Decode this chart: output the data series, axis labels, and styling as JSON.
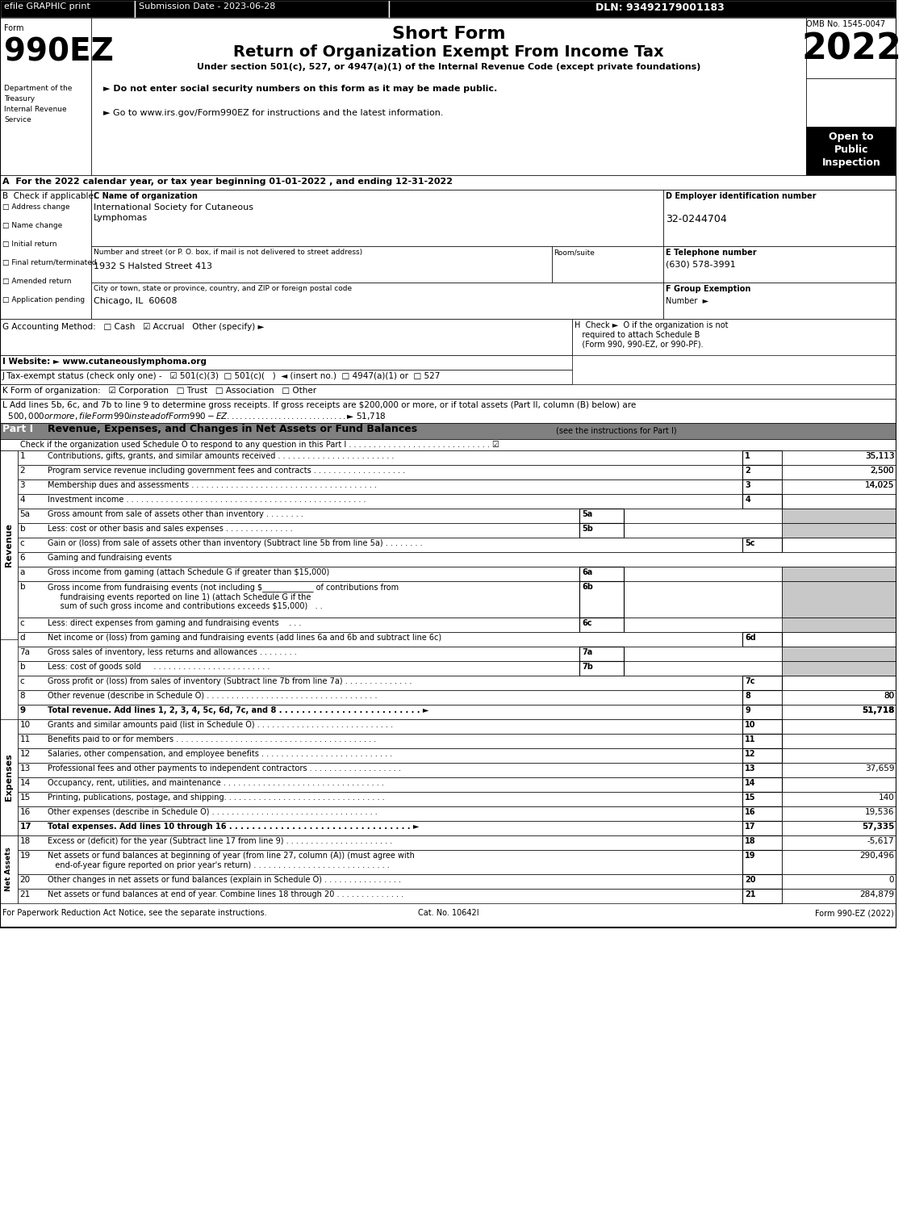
{
  "title_short": "Short Form",
  "title_main": "Return of Organization Exempt From Income Tax",
  "subtitle": "Under section 501(c), 527, or 4947(a)(1) of the Internal Revenue Code (except private foundations)",
  "year": "2022",
  "form_number": "990EZ",
  "omb": "OMB No. 1545-0047",
  "efile_text": "efile GRAPHIC print",
  "submission_date": "Submission Date - 2023-06-28",
  "dln": "DLN: 93492179001183",
  "dept1": "Department of the",
  "dept2": "Treasury",
  "dept3": "Internal Revenue",
  "dept4": "Service",
  "bullet1": "► Do not enter social security numbers on this form as it may be made public.",
  "bullet2": "► Go to www.irs.gov/Form990EZ for instructions and the latest information.",
  "open_to": "Open to",
  "public": "Public",
  "inspection": "Inspection",
  "line_A": "A  For the 2022 calendar year, or tax year beginning 01-01-2022 , and ending 12-31-2022",
  "line_B_label": "B  Check if applicable:",
  "check_items": [
    "Address change",
    "Name change",
    "Initial return",
    "Final return/terminated",
    "Amended return",
    "Application pending"
  ],
  "line_C_label": "C Name of organization",
  "org_name": "International Society for Cutaneous\nLymphomas",
  "address_label": "Number and street (or P. O. box, if mail is not delivered to street address)",
  "room_label": "Room/suite",
  "address_value": "1932 S Halsted Street 413",
  "city_label": "City or town, state or province, country, and ZIP or foreign postal code",
  "city_value": "Chicago, IL  60608",
  "line_D_label": "D Employer identification number",
  "ein": "32-0244704",
  "line_E_label": "E Telephone number",
  "phone": "(630) 578-3991",
  "line_F_label": "F Group Exemption",
  "line_F2": "Number  ►",
  "line_G": "G Accounting Method:   □ Cash   ☑ Accrual   Other (specify) ►",
  "line_H": "H  Check ►  O if the organization is not\n   required to attach Schedule B\n   (Form 990, 990-EZ, or 990-PF).",
  "line_I": "I Website: ► www.cutaneouslymphoma.org",
  "line_J": "J Tax-exempt status (check only one) -   ☑ 501(c)(3)  □ 501(c)(   )  ◄ (insert no.)  □ 4947(a)(1) or  □ 527",
  "line_K": "K Form of organization:   ☑ Corporation   □ Trust   □ Association   □ Other",
  "line_L": "L Add lines 5b, 6c, and 7b to line 9 to determine gross receipts. If gross receipts are $200,000 or more, or if total assets (Part II, column (B) below) are\n  $500,000 or more, file Form 990 instead of Form 990-EZ . . . . . . . . . . . . . . . . . . . . . . . . . . . .  ► $ 51,718",
  "part1_title": "Revenue, Expenses, and Changes in Net Assets or Fund Balances",
  "part1_subtitle": "(see the instructions for Part I)",
  "part1_check": "Check if the organization used Schedule O to respond to any question in this Part I . . . . . . . . . . . . . . . . . . . . . . . . . . . . . ☑",
  "revenue_rows": [
    {
      "num": "1",
      "label": "Contributions, gifts, grants, and similar amounts received . . . . . . . . . . . . . . . . . . . . . . . .",
      "line": "1",
      "value": "35,113"
    },
    {
      "num": "2",
      "label": "Program service revenue including government fees and contracts . . . . . . . . . . . . . . . . . . .",
      "line": "2",
      "value": "2,500"
    },
    {
      "num": "3",
      "label": "Membership dues and assessments . . . . . . . . . . . . . . . . . . . . . . . . . . . . . . . . . . . . . .",
      "line": "3",
      "value": "14,025"
    },
    {
      "num": "4",
      "label": "Investment income . . . . . . . . . . . . . . . . . . . . . . . . . . . . . . . . . . . . . . . . . . . . . . . . .",
      "line": "4",
      "value": ""
    },
    {
      "num": "5a",
      "label": "Gross amount from sale of assets other than inventory . . . . . . . .",
      "line": "5a",
      "value": "",
      "sub": true
    },
    {
      "num": "b",
      "label": "Less: cost or other basis and sales expenses . . . . . . . . . . . . . .",
      "line": "5b",
      "value": "",
      "sub": true
    },
    {
      "num": "c",
      "label": "Gain or (loss) from sale of assets other than inventory (Subtract line 5b from line 5a) . . . . . . . .",
      "line": "5c",
      "value": ""
    },
    {
      "num": "6",
      "label": "Gaming and fundraising events",
      "line": "",
      "value": ""
    },
    {
      "num": "a",
      "label": "Gross income from gaming (attach Schedule G if greater than $15,000)",
      "line": "6a",
      "value": "",
      "sub": true
    },
    {
      "num": "b",
      "label": "Gross income from fundraising events (not including $_____________ of contributions from\n     fundraising events reported on line 1) (attach Schedule G if the\n     sum of such gross income and contributions exceeds $15,000)   . .",
      "line": "6b",
      "value": "",
      "sub": true
    },
    {
      "num": "c",
      "label": "Less: direct expenses from gaming and fundraising events    . . .",
      "line": "6c",
      "value": "",
      "sub": true
    },
    {
      "num": "d",
      "label": "Net income or (loss) from gaming and fundraising events (add lines 6a and 6b and subtract line 6c)",
      "line": "6d",
      "value": ""
    },
    {
      "num": "7a",
      "label": "Gross sales of inventory, less returns and allowances . . . . . . . .",
      "line": "7a",
      "value": "",
      "sub": true
    },
    {
      "num": "b",
      "label": "Less: cost of goods sold     . . . . . . . . . . . . . . . . . . . . . . . .",
      "line": "7b",
      "value": "",
      "sub": true
    },
    {
      "num": "c",
      "label": "Gross profit or (loss) from sales of inventory (Subtract line 7b from line 7a) . . . . . . . . . . . . . .",
      "line": "7c",
      "value": ""
    },
    {
      "num": "8",
      "label": "Other revenue (describe in Schedule O) . . . . . . . . . . . . . . . . . . . . . . . . . . . . . . . . . . .",
      "line": "8",
      "value": "80"
    },
    {
      "num": "9",
      "label": "Total revenue. Add lines 1, 2, 3, 4, 5c, 6d, 7c, and 8 . . . . . . . . . . . . . . . . . . . . . . . . . ►",
      "line": "9",
      "value": "51,718",
      "bold": true
    }
  ],
  "expenses_rows": [
    {
      "num": "10",
      "label": "Grants and similar amounts paid (list in Schedule O) . . . . . . . . . . . . . . . . . . . . . . . . . . . .",
      "line": "10",
      "value": ""
    },
    {
      "num": "11",
      "label": "Benefits paid to or for members . . . . . . . . . . . . . . . . . . . . . . . . . . . . . . . . . . . . . . . . .",
      "line": "11",
      "value": ""
    },
    {
      "num": "12",
      "label": "Salaries, other compensation, and employee benefits . . . . . . . . . . . . . . . . . . . . . . . . . . .",
      "line": "12",
      "value": ""
    },
    {
      "num": "13",
      "label": "Professional fees and other payments to independent contractors . . . . . . . . . . . . . . . . . . .",
      "line": "13",
      "value": "37,659"
    },
    {
      "num": "14",
      "label": "Occupancy, rent, utilities, and maintenance . . . . . . . . . . . . . . . . . . . . . . . . . . . . . . . . .",
      "line": "14",
      "value": ""
    },
    {
      "num": "15",
      "label": "Printing, publications, postage, and shipping. . . . . . . . . . . . . . . . . . . . . . . . . . . . . . . . .",
      "line": "15",
      "value": "140"
    },
    {
      "num": "16",
      "label": "Other expenses (describe in Schedule O) . . . . . . . . . . . . . . . . . . . . . . . . . . . . . . . . . .",
      "line": "16",
      "value": "19,536"
    },
    {
      "num": "17",
      "label": "Total expenses. Add lines 10 through 16 . . . . . . . . . . . . . . . . . . . . . . . . . . . . . . . . ►",
      "line": "17",
      "value": "57,335",
      "bold": true
    }
  ],
  "netassets_rows": [
    {
      "num": "18",
      "label": "Excess or (deficit) for the year (Subtract line 17 from line 9) . . . . . . . . . . . . . . . . . . . . . .",
      "line": "18",
      "value": "-5,617"
    },
    {
      "num": "19",
      "label": "Net assets or fund balances at beginning of year (from line 27, column (A)) (must agree with\n   end-of-year figure reported on prior year's return) . . . . . . . . . . . . . . . . . . . . . . . . . . . .",
      "line": "19",
      "value": "290,496"
    },
    {
      "num": "20",
      "label": "Other changes in net assets or fund balances (explain in Schedule O) . . . . . . . . . . . . . . . .",
      "line": "20",
      "value": "0"
    },
    {
      "num": "21",
      "label": "Net assets or fund balances at end of year. Combine lines 18 through 20 . . . . . . . . . . . . . .",
      "line": "21",
      "value": "284,879"
    }
  ],
  "footer_left": "For Paperwork Reduction Act Notice, see the separate instructions.",
  "footer_cat": "Cat. No. 10642I",
  "footer_right": "Form 990-EZ (2022)",
  "bg_color": "#ffffff",
  "header_bg": "#000000",
  "header_text_color": "#ffffff",
  "year_bg": "#000000",
  "open_bg": "#000000",
  "section_header_bg": "#a0a0a0",
  "gray_cell": "#c0c0c0"
}
